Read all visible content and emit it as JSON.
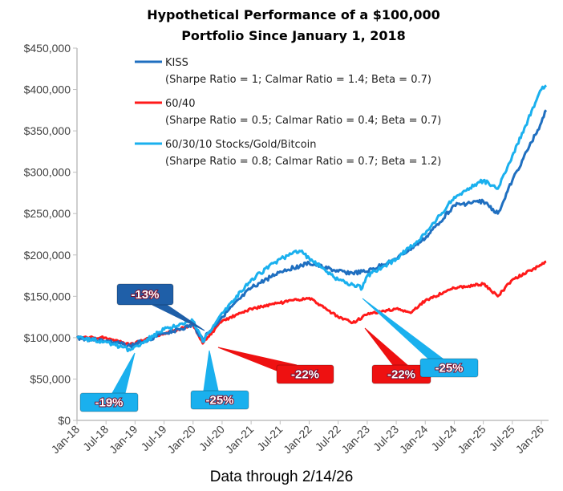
{
  "chart_data": {
    "type": "line",
    "title": [
      "Hypothetical Performance of a $100,000",
      "Portfolio Since January 1, 2018"
    ],
    "footnote": "Data through 2/14/26",
    "ylim": [
      0,
      450000
    ],
    "yticks": [
      0,
      50000,
      100000,
      150000,
      200000,
      250000,
      300000,
      350000,
      400000,
      450000
    ],
    "ytick_labels": [
      "$0",
      "$50,000",
      "$100,000",
      "$150,000",
      "$200,000",
      "$250,000",
      "$300,000",
      "$350,000",
      "$400,000",
      "$450,000"
    ],
    "xticks": [
      "2018-01",
      "2018-07",
      "2019-01",
      "2019-07",
      "2020-01",
      "2020-07",
      "2021-01",
      "2021-07",
      "2022-01",
      "2022-07",
      "2023-01",
      "2023-07",
      "2024-01",
      "2024-07",
      "2025-01",
      "2025-07",
      "2026-01"
    ],
    "xtick_labels": [
      "Jan-18",
      "Jul-18",
      "Jan-19",
      "Jul-19",
      "Jan-20",
      "Jul-20",
      "Jan-21",
      "Jul-21",
      "Jan-22",
      "Jul-22",
      "Jan-23",
      "Jul-23",
      "Jan-24",
      "Jul-24",
      "Jan-25",
      "Jul-25",
      "Jan-26"
    ],
    "grid": false,
    "legend_position": "top-left",
    "series": [
      {
        "name": "KISS",
        "sub": "(Sharpe Ratio = 1; Calmar Ratio = 1.4; Beta = 0.7)",
        "color": "#1f6fc0",
        "points": [
          [
            "2018-01",
            100000
          ],
          [
            "2018-07",
            96000
          ],
          [
            "2018-12",
            90000
          ],
          [
            "2019-07",
            105000
          ],
          [
            "2020-01",
            115000
          ],
          [
            "2020-03",
            98000
          ],
          [
            "2020-07",
            125000
          ],
          [
            "2021-01",
            160000
          ],
          [
            "2021-07",
            180000
          ],
          [
            "2022-01",
            190000
          ],
          [
            "2022-07",
            180000
          ],
          [
            "2022-10",
            178000
          ],
          [
            "2023-01",
            180000
          ],
          [
            "2023-07",
            195000
          ],
          [
            "2024-01",
            220000
          ],
          [
            "2024-07",
            260000
          ],
          [
            "2025-01",
            265000
          ],
          [
            "2025-04",
            250000
          ],
          [
            "2025-07",
            290000
          ],
          [
            "2026-01",
            360000
          ],
          [
            "2026-02",
            375000
          ]
        ]
      },
      {
        "name": "60/40",
        "sub": "(Sharpe Ratio = 0.5; Calmar Ratio = 0.4; Beta = 0.7)",
        "color": "#ff1a1a",
        "points": [
          [
            "2018-01",
            100000
          ],
          [
            "2018-07",
            100000
          ],
          [
            "2018-12",
            92000
          ],
          [
            "2019-07",
            105000
          ],
          [
            "2020-01",
            115000
          ],
          [
            "2020-03",
            93000
          ],
          [
            "2020-07",
            120000
          ],
          [
            "2021-01",
            135000
          ],
          [
            "2021-07",
            142000
          ],
          [
            "2022-01",
            148000
          ],
          [
            "2022-07",
            125000
          ],
          [
            "2022-10",
            118000
          ],
          [
            "2023-01",
            128000
          ],
          [
            "2023-07",
            135000
          ],
          [
            "2023-10",
            130000
          ],
          [
            "2024-01",
            145000
          ],
          [
            "2024-07",
            160000
          ],
          [
            "2025-01",
            165000
          ],
          [
            "2025-04",
            150000
          ],
          [
            "2025-07",
            170000
          ],
          [
            "2026-01",
            188000
          ],
          [
            "2026-02",
            192000
          ]
        ]
      },
      {
        "name": "60/30/10 Stocks/Gold/Bitcoin",
        "sub": "(Sharpe Ratio = 0.8; Calmar Ratio = 0.7; Beta = 1.2)",
        "color": "#1ab0ee",
        "points": [
          [
            "2018-01",
            100000
          ],
          [
            "2018-07",
            95000
          ],
          [
            "2018-12",
            85000
          ],
          [
            "2019-07",
            110000
          ],
          [
            "2020-01",
            120000
          ],
          [
            "2020-03",
            95000
          ],
          [
            "2020-07",
            130000
          ],
          [
            "2021-01",
            170000
          ],
          [
            "2021-07",
            195000
          ],
          [
            "2021-11",
            205000
          ],
          [
            "2022-07",
            170000
          ],
          [
            "2022-12",
            160000
          ],
          [
            "2023-01",
            175000
          ],
          [
            "2023-07",
            195000
          ],
          [
            "2024-01",
            225000
          ],
          [
            "2024-07",
            270000
          ],
          [
            "2025-01",
            290000
          ],
          [
            "2025-04",
            280000
          ],
          [
            "2025-07",
            320000
          ],
          [
            "2026-01",
            400000
          ],
          [
            "2026-02",
            405000
          ]
        ]
      }
    ],
    "annotations": [
      {
        "text": "-13%",
        "series": "KISS",
        "color": "#1f5fa8"
      },
      {
        "text": "-19%",
        "series": "60/30/10 Stocks/Gold/Bitcoin",
        "color": "#1ab0ee"
      },
      {
        "text": "-25%",
        "series": "60/30/10 Stocks/Gold/Bitcoin",
        "color": "#1ab0ee"
      },
      {
        "text": "-22%",
        "series": "60/40",
        "color": "#ee1111"
      },
      {
        "text": "-22%",
        "series": "60/40",
        "color": "#ee1111"
      },
      {
        "text": "-25%",
        "series": "60/30/10 Stocks/Gold/Bitcoin",
        "color": "#1ab0ee"
      }
    ]
  }
}
